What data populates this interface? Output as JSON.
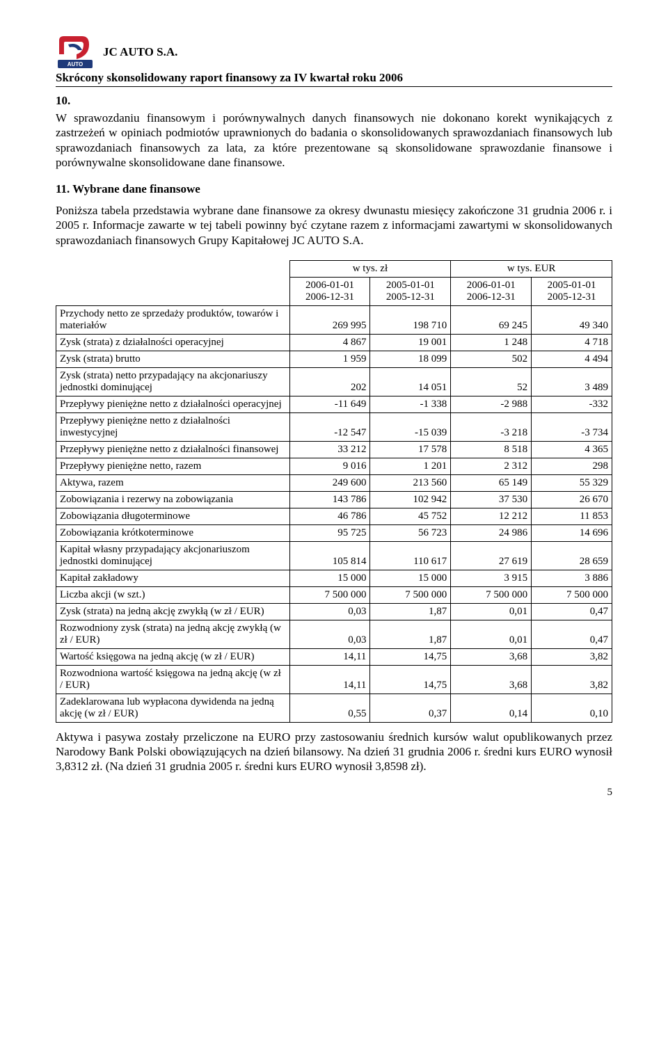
{
  "header": {
    "company": "JC AUTO S.A.",
    "subtitle": "Skrócony skonsolidowany raport finansowy za IV kwartał roku 2006"
  },
  "section10": {
    "num": "10.",
    "text": "W sprawozdaniu finansowym i porównywalnych danych finansowych nie dokonano korekt wynikających z zastrzeżeń w opiniach podmiotów uprawnionych do badania o skonsolidowanych sprawozdaniach finansowych lub sprawozdaniach finansowych za lata, za które prezentowane są skonsolidowane sprawozdanie finansowe i porównywalne skonsolidowane dane finansowe."
  },
  "section11": {
    "title": "11. Wybrane dane finansowe",
    "text": "Poniższa tabela przedstawia wybrane dane finansowe za okresy dwunastu miesięcy zakończone 31 grudnia 2006 r. i 2005 r. Informacje zawarte w tej tabeli powinny być czytane razem z informacjami zawartymi w skonsolidowanych sprawozdaniach finansowych Grupy Kapitałowej JC AUTO S.A."
  },
  "table": {
    "unit_left": "w tys.   zł",
    "unit_right": "w tys.   EUR",
    "periods": {
      "p1a": "2006-01-01",
      "p1b": "2006-12-31",
      "p2a": "2005-01-01",
      "p2b": "2005-12-31",
      "p3a": "2006-01-01",
      "p3b": "2006-12-31",
      "p4a": "2005-01-01",
      "p4b": "2005-12-31"
    },
    "rows": [
      {
        "l": "Przychody netto ze sprzedaży produktów, towarów i materiałów",
        "v": [
          "269 995",
          "198 710",
          "69 245",
          "49 340"
        ]
      },
      {
        "l": "Zysk (strata) z działalności operacyjnej",
        "v": [
          "4 867",
          "19 001",
          "1 248",
          "4 718"
        ]
      },
      {
        "l": "Zysk (strata) brutto",
        "v": [
          "1 959",
          "18 099",
          "502",
          "4 494"
        ]
      },
      {
        "l": "Zysk (strata) netto przypadający na akcjonariuszy jednostki dominującej",
        "v": [
          "202",
          "14 051",
          "52",
          "3 489"
        ]
      },
      {
        "l": "Przepływy pieniężne netto z działalności operacyjnej",
        "v": [
          "-11 649",
          "-1 338",
          "-2 988",
          "-332"
        ]
      },
      {
        "l": "Przepływy pieniężne netto z działalności inwestycyjnej",
        "v": [
          "-12 547",
          "-15 039",
          "-3 218",
          "-3 734"
        ]
      },
      {
        "l": "Przepływy pieniężne netto z działalności finansowej",
        "v": [
          "33 212",
          "17 578",
          "8 518",
          "4 365"
        ]
      },
      {
        "l": "Przepływy pieniężne netto, razem",
        "v": [
          "9 016",
          "1 201",
          "2 312",
          "298"
        ]
      },
      {
        "l": "Aktywa, razem",
        "v": [
          "249 600",
          "213 560",
          "65 149",
          "55 329"
        ]
      },
      {
        "l": "Zobowiązania i rezerwy na zobowiązania",
        "v": [
          "143 786",
          "102 942",
          "37 530",
          "26 670"
        ]
      },
      {
        "l": "Zobowiązania długoterminowe",
        "v": [
          "46 786",
          "45 752",
          "12 212",
          "11 853"
        ]
      },
      {
        "l": "Zobowiązania krótkoterminowe",
        "v": [
          "95 725",
          "56 723",
          "24 986",
          "14 696"
        ]
      },
      {
        "l": "Kapitał własny przypadający akcjonariuszom jednostki dominującej",
        "v": [
          "105 814",
          "110 617",
          "27 619",
          "28 659"
        ]
      },
      {
        "l": "Kapitał zakładowy",
        "v": [
          "15 000",
          "15 000",
          "3 915",
          "3 886"
        ]
      },
      {
        "l": "Liczba akcji (w szt.)",
        "v": [
          "7 500 000",
          "7 500 000",
          "7 500 000",
          "7 500 000"
        ]
      },
      {
        "l": "Zysk (strata) na jedną akcję zwykłą (w zł / EUR)",
        "v": [
          "0,03",
          "1,87",
          "0,01",
          "0,47"
        ]
      },
      {
        "l": "Rozwodniony zysk (strata) na jedną akcję zwykłą (w zł / EUR)",
        "v": [
          "0,03",
          "1,87",
          "0,01",
          "0,47"
        ]
      },
      {
        "l": "Wartość księgowa na jedną akcję (w zł / EUR)",
        "v": [
          "14,11",
          "14,75",
          "3,68",
          "3,82"
        ]
      },
      {
        "l": "Rozwodniona wartość księgowa na jedną akcję (w zł / EUR)",
        "v": [
          "14,11",
          "14,75",
          "3,68",
          "3,82"
        ]
      },
      {
        "l": "Zadeklarowana lub wypłacona dywidenda na jedną akcję (w zł / EUR)",
        "v": [
          "0,55",
          "0,37",
          "0,14",
          "0,10"
        ]
      }
    ]
  },
  "footer": {
    "text": "Aktywa i pasywa zostały przeliczone na EURO przy zastosowaniu średnich kursów walut opublikowanych przez Narodowy Bank Polski obowiązujących na dzień bilansowy. Na dzień 31 grudnia 2006 r. średni kurs EURO wynosił 3,8312 zł. (Na dzień 31 grudnia 2005 r. średni kurs EURO wynosił 3,8598 zł).",
    "page": "5"
  }
}
